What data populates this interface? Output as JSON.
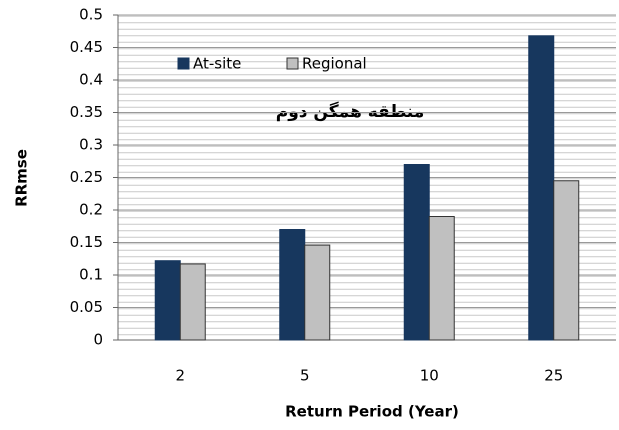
{
  "chart_data": {
    "type": "bar",
    "title": "منطقه همگن دوم",
    "x_label": "Return Period (Year)",
    "y_label": "RRmse",
    "categories": [
      "2",
      "5",
      "10",
      "25"
    ],
    "series": [
      {
        "name": "At-site",
        "color": "#17375e",
        "values": [
          0.122,
          0.17,
          0.27,
          0.468
        ]
      },
      {
        "name": "Regional",
        "color": "#c0c0c0",
        "values": [
          0.117,
          0.146,
          0.19,
          0.245
        ]
      }
    ],
    "ylim": [
      0,
      0.5
    ],
    "yticks": [
      0,
      0.05,
      0.1,
      0.15,
      0.2,
      0.25,
      0.3,
      0.35,
      0.4,
      0.45,
      0.5
    ],
    "grid": true,
    "legend": "top-left"
  }
}
